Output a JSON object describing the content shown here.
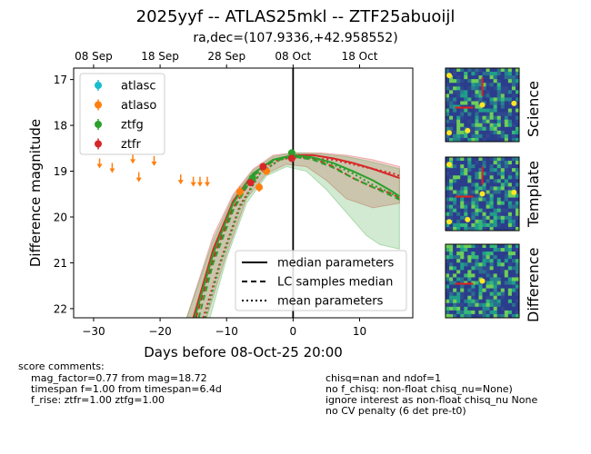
{
  "title": "2025yyf -- ATLAS25mkl -- ZTF25abuoijl",
  "subtitle": "ra,dec=(107.9336,+42.958552)",
  "chart_data": {
    "type": "scatter",
    "xlabel": "Days before 08-Oct-25 20:00",
    "ylabel": "Difference magnitude",
    "xlim": [
      -33,
      18
    ],
    "ylim": [
      22.2,
      16.75
    ],
    "y_inverted": true,
    "x_ticks": [
      -30,
      -20,
      -10,
      0,
      10
    ],
    "y_ticks": [
      17,
      18,
      19,
      20,
      21,
      22
    ],
    "top_axis_ticks": [
      {
        "x": -30,
        "label": "08 Sep"
      },
      {
        "x": -20,
        "label": "18 Sep"
      },
      {
        "x": -10,
        "label": "28 Sep"
      },
      {
        "x": 0,
        "label": "08 Oct"
      },
      {
        "x": 10,
        "label": "18 Oct"
      }
    ],
    "vline_x": 0,
    "legend_points": {
      "placement": "top-left",
      "entries": [
        "atlasc",
        "atlaso",
        "ztfg",
        "ztfr"
      ]
    },
    "legend_lines": {
      "placement": "bottom-right",
      "entries": [
        "median parameters",
        "LC samples median",
        "mean parameters"
      ]
    },
    "colors": {
      "atlasc": "#17becf",
      "atlaso": "#ff7f0e",
      "ztfg": "#2ca02c",
      "ztfr": "#d62728"
    },
    "series": [
      {
        "name": "atlaso",
        "kind": "upper_limit",
        "points": [
          {
            "x": -29.1,
            "y": 18.8
          },
          {
            "x": -27.2,
            "y": 18.9
          },
          {
            "x": -24.1,
            "y": 18.7
          },
          {
            "x": -23.2,
            "y": 19.1
          },
          {
            "x": -20.9,
            "y": 18.75
          },
          {
            "x": -16.9,
            "y": 19.15
          },
          {
            "x": -15.0,
            "y": 19.2
          },
          {
            "x": -14.0,
            "y": 19.2
          },
          {
            "x": -12.9,
            "y": 19.2
          }
        ]
      },
      {
        "name": "atlaso",
        "kind": "detection",
        "points": [
          {
            "x": -8.0,
            "y": 19.45,
            "err": 0.12
          },
          {
            "x": -5.1,
            "y": 19.35,
            "err": 0.1
          },
          {
            "x": -4.0,
            "y": 19.0,
            "err": 0.08
          }
        ]
      },
      {
        "name": "ztfg",
        "kind": "detection",
        "points": [
          {
            "x": -6.1,
            "y": 19.15,
            "err": 0.06
          },
          {
            "x": -0.2,
            "y": 18.6,
            "err": 0.06
          }
        ]
      },
      {
        "name": "ztfr",
        "kind": "detection",
        "points": [
          {
            "x": -6.4,
            "y": 19.25,
            "err": 0.06
          },
          {
            "x": -4.5,
            "y": 18.9,
            "err": 0.06
          },
          {
            "x": -0.2,
            "y": 18.72,
            "err": 0.05
          }
        ]
      }
    ],
    "model_curves": [
      {
        "band": "ztfr",
        "style": "solid",
        "points": [
          [
            -15,
            22.2
          ],
          [
            -12,
            20.7
          ],
          [
            -9,
            19.65
          ],
          [
            -6,
            19.05
          ],
          [
            -3,
            18.75
          ],
          [
            0,
            18.65
          ],
          [
            3,
            18.65
          ],
          [
            6,
            18.72
          ],
          [
            9,
            18.82
          ],
          [
            12,
            18.95
          ],
          [
            15,
            19.1
          ],
          [
            16,
            19.15
          ]
        ]
      },
      {
        "band": "ztfr",
        "style": "dashed",
        "points": [
          [
            -14.6,
            22.2
          ],
          [
            -12,
            20.9
          ],
          [
            -9,
            19.8
          ],
          [
            -6,
            19.1
          ],
          [
            -3,
            18.78
          ],
          [
            0,
            18.68
          ],
          [
            3,
            18.72
          ],
          [
            6,
            18.9
          ],
          [
            9,
            19.15
          ],
          [
            12,
            19.35
          ],
          [
            15,
            19.5
          ],
          [
            16,
            19.6
          ]
        ]
      },
      {
        "band": "ztfr",
        "style": "dotted",
        "points": [
          [
            -13.5,
            22.2
          ],
          [
            -11,
            21.0
          ],
          [
            -8,
            19.75
          ],
          [
            -5,
            19.05
          ],
          [
            -2,
            18.75
          ],
          [
            0,
            18.7
          ],
          [
            3,
            18.72
          ],
          [
            6,
            18.75
          ],
          [
            9,
            18.85
          ],
          [
            12,
            18.95
          ],
          [
            15,
            19.05
          ],
          [
            16,
            19.1
          ]
        ]
      },
      {
        "band": "ztfg",
        "style": "solid",
        "points": [
          [
            -14.8,
            22.2
          ],
          [
            -12,
            20.8
          ],
          [
            -9,
            19.7
          ],
          [
            -6,
            19.05
          ],
          [
            -3,
            18.75
          ],
          [
            0,
            18.65
          ],
          [
            3,
            18.7
          ],
          [
            6,
            18.82
          ],
          [
            9,
            19.0
          ],
          [
            12,
            19.2
          ],
          [
            15,
            19.45
          ],
          [
            16,
            19.55
          ]
        ]
      },
      {
        "band": "ztfg",
        "style": "dashed",
        "points": [
          [
            -14.2,
            22.2
          ],
          [
            -12,
            21.0
          ],
          [
            -9,
            19.85
          ],
          [
            -6,
            19.1
          ],
          [
            -3,
            18.78
          ],
          [
            0,
            18.68
          ],
          [
            3,
            18.75
          ],
          [
            6,
            18.92
          ],
          [
            9,
            19.15
          ],
          [
            12,
            19.35
          ],
          [
            15,
            19.55
          ],
          [
            16,
            19.62
          ]
        ]
      },
      {
        "band": "ztfg",
        "style": "dotted",
        "points": [
          [
            -13.2,
            22.2
          ],
          [
            -11,
            21.05
          ],
          [
            -8,
            19.8
          ],
          [
            -5,
            19.05
          ],
          [
            -2,
            18.75
          ],
          [
            0,
            18.68
          ],
          [
            3,
            18.72
          ],
          [
            6,
            18.85
          ],
          [
            9,
            19.05
          ],
          [
            12,
            19.3
          ],
          [
            15,
            19.5
          ],
          [
            16,
            19.6
          ]
        ]
      }
    ],
    "uncertainty_bands": [
      {
        "band": "ztfr",
        "upper": [
          [
            -16,
            22.2
          ],
          [
            -12,
            20.4
          ],
          [
            -9,
            19.5
          ],
          [
            -6,
            18.95
          ],
          [
            -3,
            18.65
          ],
          [
            0,
            18.6
          ],
          [
            4,
            18.6
          ],
          [
            8,
            18.65
          ],
          [
            12,
            18.75
          ],
          [
            16,
            18.9
          ]
        ],
        "lower": [
          [
            -13,
            22.2
          ],
          [
            -10,
            20.8
          ],
          [
            -7,
            19.6
          ],
          [
            -4,
            19.05
          ],
          [
            -1,
            18.85
          ],
          [
            2,
            18.9
          ],
          [
            5,
            19.2
          ],
          [
            8,
            19.6
          ],
          [
            12,
            19.8
          ],
          [
            16,
            19.7
          ]
        ]
      },
      {
        "band": "ztfg",
        "upper": [
          [
            -16,
            22.2
          ],
          [
            -12,
            20.5
          ],
          [
            -9,
            19.55
          ],
          [
            -6,
            18.98
          ],
          [
            -3,
            18.68
          ],
          [
            0,
            18.6
          ],
          [
            4,
            18.62
          ],
          [
            8,
            18.68
          ],
          [
            12,
            18.8
          ],
          [
            16,
            18.95
          ]
        ],
        "lower": [
          [
            -12.5,
            22.2
          ],
          [
            -10,
            20.9
          ],
          [
            -7,
            19.7
          ],
          [
            -4,
            19.1
          ],
          [
            -1,
            18.9
          ],
          [
            2,
            19.0
          ],
          [
            5,
            19.4
          ],
          [
            8,
            19.9
          ],
          [
            11,
            20.4
          ],
          [
            13,
            20.6
          ],
          [
            16,
            20.7
          ]
        ]
      }
    ]
  },
  "stamps": {
    "labels": [
      "Science",
      "Template",
      "Difference"
    ]
  },
  "comments": {
    "header": "score comments:",
    "left": [
      "mag_factor=0.77 from mag=18.72",
      "timespan f=1.00 from timespan=6.4d",
      "f_rise: ztfr=1.00 ztfg=1.00"
    ],
    "right": [
      "chisq=nan and ndof=1",
      "no f_chisq: non-float chisq_nu=None)",
      "ignore interest as non-float chisq_nu None",
      "no CV penalty (6 det pre-t0)"
    ]
  }
}
